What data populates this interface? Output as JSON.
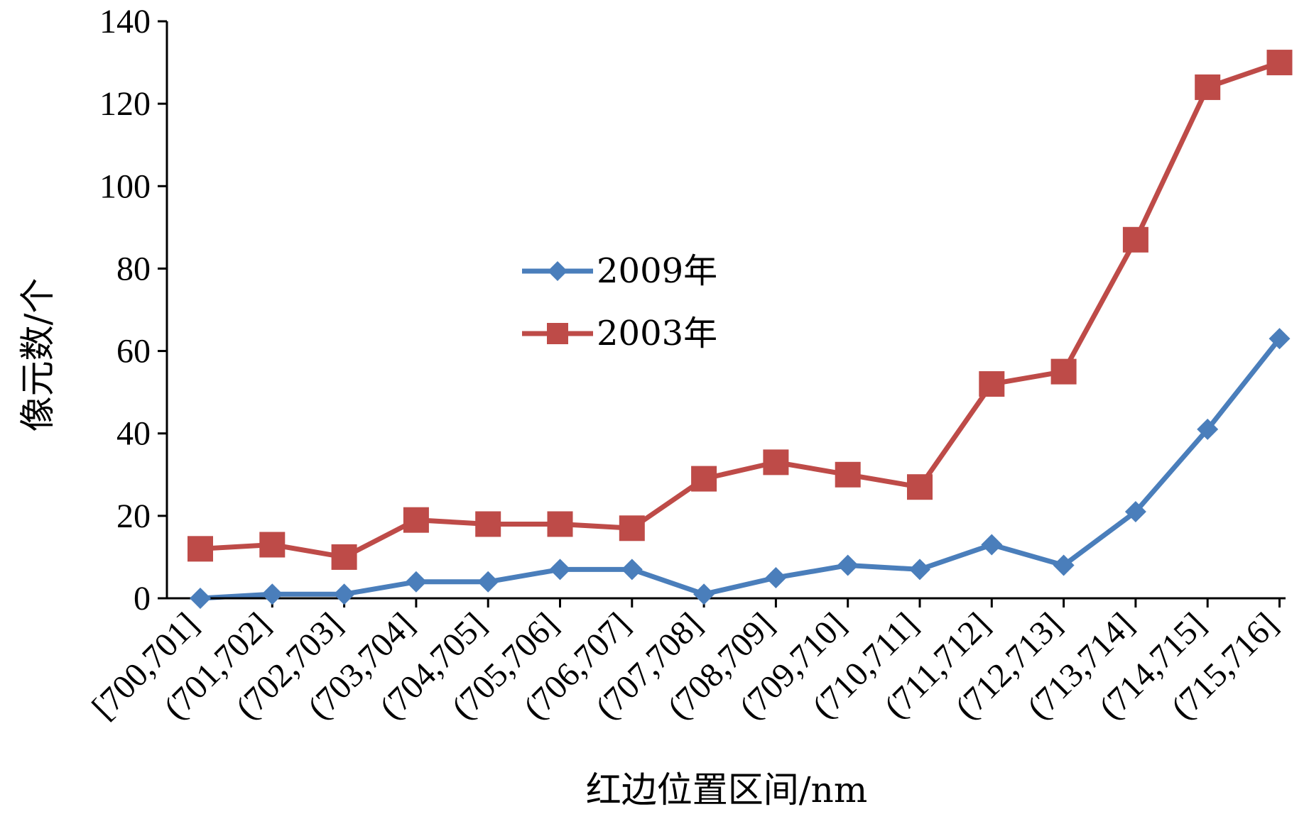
{
  "chart_data": {
    "type": "line",
    "title": "",
    "xlabel": "红边位置区间/nm",
    "ylabel": "像元数/个",
    "ylim": [
      0,
      140
    ],
    "yticks": [
      "0",
      "20",
      "40",
      "60",
      "80",
      "100",
      "120",
      "140"
    ],
    "categories": [
      "[700,701]",
      "(701,702]",
      "(702,703]",
      "(703,704]",
      "(704,705]",
      "(705,706]",
      "(706,707]",
      "(707,708]",
      "(708,709]",
      "(709,710]",
      "(710,711]",
      "(711,712]",
      "(712,713]",
      "(713,714]",
      "(714,715]",
      "(715,716]"
    ],
    "series": [
      {
        "name": "2009年",
        "color": "#4A7EBB",
        "marker": "diamond",
        "values": [
          0,
          1,
          1,
          4,
          4,
          7,
          7,
          1,
          5,
          8,
          7,
          13,
          8,
          21,
          41,
          63
        ]
      },
      {
        "name": "2003年",
        "color": "#BE4B48",
        "marker": "square",
        "values": [
          12,
          13,
          10,
          19,
          18,
          18,
          17,
          29,
          33,
          30,
          27,
          52,
          55,
          87,
          124,
          130
        ]
      }
    ],
    "legend_position": "center-left",
    "grid": false
  }
}
